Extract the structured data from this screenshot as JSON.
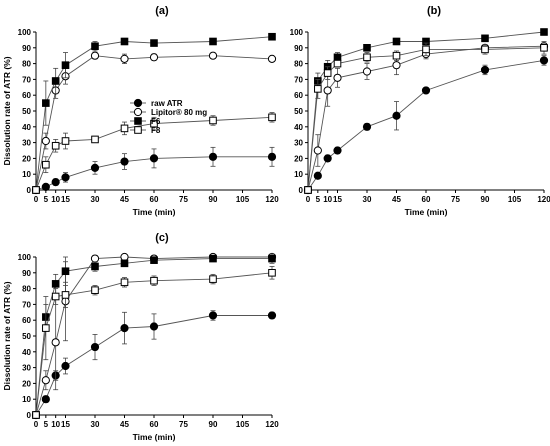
{
  "figure": {
    "panels": [
      "(a)",
      "(b)",
      "(c)"
    ]
  },
  "legend": [
    {
      "label": "raw ATR",
      "marker": "filled-circle"
    },
    {
      "label": "Lipitor® 80 mg",
      "marker": "open-circle"
    },
    {
      "label": "F6",
      "marker": "filled-square"
    },
    {
      "label": "F8",
      "marker": "open-square"
    }
  ],
  "chart_data": [
    {
      "type": "line",
      "title": "(a)",
      "xlabel": "Time (min)",
      "ylabel": "Dissolution rate of ATR (%)",
      "xlim": [
        0,
        120
      ],
      "ylim": [
        0,
        100
      ],
      "xticks": [
        0,
        5,
        10,
        15,
        30,
        45,
        60,
        75,
        90,
        105,
        120
      ],
      "yticks": [
        0,
        10,
        20,
        30,
        40,
        50,
        60,
        70,
        80,
        90,
        100
      ],
      "legend_position": "center-left",
      "series": [
        {
          "name": "raw ATR",
          "marker": "filled-circle",
          "x": [
            0,
            5,
            10,
            15,
            30,
            45,
            60,
            90,
            120
          ],
          "y": [
            0,
            2,
            5,
            8,
            14,
            18,
            20,
            21,
            21
          ],
          "err": [
            0,
            1,
            2,
            3,
            4,
            5,
            6,
            6,
            6
          ]
        },
        {
          "name": "Lipitor® 80 mg",
          "marker": "open-circle",
          "x": [
            0,
            5,
            10,
            15,
            30,
            45,
            60,
            90,
            120
          ],
          "y": [
            0,
            31,
            63,
            72,
            85,
            83,
            84,
            85,
            83
          ],
          "err": [
            0,
            5,
            5,
            5,
            2,
            3,
            2,
            1,
            1
          ]
        },
        {
          "name": "F6",
          "marker": "filled-square",
          "x": [
            0,
            5,
            10,
            15,
            30,
            45,
            60,
            90,
            120
          ],
          "y": [
            0,
            55,
            69,
            79,
            91,
            94,
            93,
            94,
            97
          ],
          "err": [
            0,
            14,
            8,
            8,
            3,
            2,
            1,
            1,
            1
          ]
        },
        {
          "name": "F8",
          "marker": "open-square",
          "x": [
            0,
            5,
            10,
            15,
            30,
            45,
            60,
            90,
            120
          ],
          "y": [
            0,
            16,
            28,
            31,
            32,
            39,
            42,
            44,
            46
          ],
          "err": [
            0,
            5,
            4,
            5,
            2,
            4,
            4,
            3,
            3
          ]
        }
      ]
    },
    {
      "type": "line",
      "title": "(b)",
      "xlabel": "Time (min)",
      "ylabel": "",
      "xlim": [
        0,
        120
      ],
      "ylim": [
        0,
        100
      ],
      "xticks": [
        0,
        5,
        10,
        15,
        30,
        45,
        60,
        75,
        90,
        105,
        120
      ],
      "yticks": [
        0,
        10,
        20,
        30,
        40,
        50,
        60,
        70,
        80,
        90,
        100
      ],
      "series": [
        {
          "name": "raw ATR",
          "marker": "filled-circle",
          "x": [
            0,
            5,
            10,
            15,
            30,
            45,
            60,
            90,
            120
          ],
          "y": [
            0,
            9,
            20,
            25,
            40,
            47,
            63,
            76,
            82
          ],
          "err": [
            0,
            1,
            2,
            2,
            2,
            9,
            1,
            3,
            3
          ]
        },
        {
          "name": "Lipitor® 80 mg",
          "marker": "open-circle",
          "x": [
            0,
            5,
            10,
            15,
            30,
            45,
            60,
            90,
            120
          ],
          "y": [
            0,
            25,
            63,
            71,
            75,
            79,
            86,
            90,
            91
          ],
          "err": [
            0,
            10,
            10,
            6,
            5,
            6,
            3,
            2,
            2
          ]
        },
        {
          "name": "F6",
          "marker": "filled-square",
          "x": [
            0,
            5,
            10,
            15,
            30,
            45,
            60,
            90,
            120
          ],
          "y": [
            0,
            69,
            78,
            84,
            90,
            94,
            94,
            96,
            100
          ],
          "err": [
            0,
            5,
            4,
            3,
            2,
            2,
            1,
            1,
            1
          ]
        },
        {
          "name": "F8",
          "marker": "open-square",
          "x": [
            0,
            5,
            10,
            15,
            30,
            45,
            60,
            90,
            120
          ],
          "y": [
            0,
            64,
            74,
            80,
            84,
            85,
            89,
            89,
            90
          ],
          "err": [
            0,
            6,
            4,
            2,
            3,
            3,
            4,
            3,
            4
          ]
        }
      ]
    },
    {
      "type": "line",
      "title": "(c)",
      "xlabel": "Time (min)",
      "ylabel": "Dissolution rate of ATR (%)",
      "xlim": [
        0,
        120
      ],
      "ylim": [
        0,
        100
      ],
      "xticks": [
        0,
        5,
        10,
        15,
        30,
        45,
        60,
        75,
        90,
        105,
        120
      ],
      "yticks": [
        0,
        10,
        20,
        30,
        40,
        50,
        60,
        70,
        80,
        90,
        100
      ],
      "series": [
        {
          "name": "raw ATR",
          "marker": "filled-circle",
          "x": [
            0,
            5,
            10,
            15,
            30,
            45,
            60,
            90,
            120
          ],
          "y": [
            0,
            10,
            25,
            31,
            43,
            55,
            56,
            63,
            63
          ],
          "err": [
            0,
            2,
            3,
            5,
            8,
            10,
            8,
            3,
            2
          ]
        },
        {
          "name": "Lipitor® 80 mg",
          "marker": "open-circle",
          "x": [
            0,
            5,
            10,
            15,
            30,
            45,
            60,
            90,
            120
          ],
          "y": [
            0,
            22,
            46,
            72,
            99,
            100,
            99,
            100,
            100
          ],
          "err": [
            0,
            6,
            30,
            25,
            2,
            1,
            2,
            1,
            1
          ]
        },
        {
          "name": "F6",
          "marker": "filled-square",
          "x": [
            0,
            5,
            10,
            15,
            30,
            45,
            60,
            90,
            120
          ],
          "y": [
            0,
            62,
            83,
            91,
            94,
            96,
            98,
            99,
            99
          ],
          "err": [
            0,
            8,
            6,
            9,
            3,
            2,
            2,
            1,
            3
          ]
        },
        {
          "name": "F8",
          "marker": "open-square",
          "x": [
            0,
            5,
            10,
            15,
            30,
            45,
            60,
            90,
            120
          ],
          "y": [
            0,
            55,
            75,
            76,
            79,
            84,
            85,
            86,
            90
          ],
          "err": [
            0,
            20,
            5,
            8,
            3,
            3,
            3,
            3,
            4
          ]
        }
      ]
    }
  ]
}
